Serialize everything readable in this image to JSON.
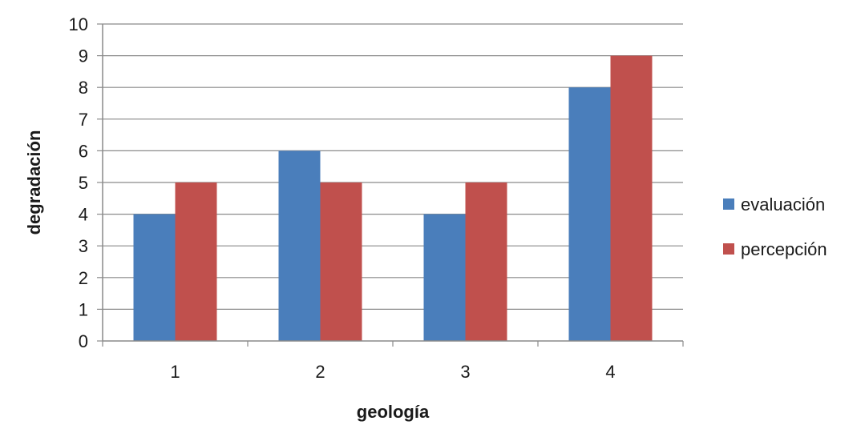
{
  "chart_data": {
    "type": "bar",
    "title": "",
    "xlabel": "geología",
    "ylabel": "degradación",
    "categories": [
      "1",
      "2",
      "3",
      "4"
    ],
    "series": [
      {
        "name": "evaluación",
        "values": [
          4,
          6,
          4,
          8
        ],
        "color": "#4A7EBB"
      },
      {
        "name": "percepción",
        "values": [
          5,
          5,
          5,
          9
        ],
        "color": "#C0504D"
      }
    ],
    "ylim": [
      0,
      10
    ],
    "yticks": [
      "0",
      "1",
      "2",
      "3",
      "4",
      "5",
      "6",
      "7",
      "8",
      "9",
      "10"
    ],
    "grid": true,
    "legend_position": "right"
  }
}
